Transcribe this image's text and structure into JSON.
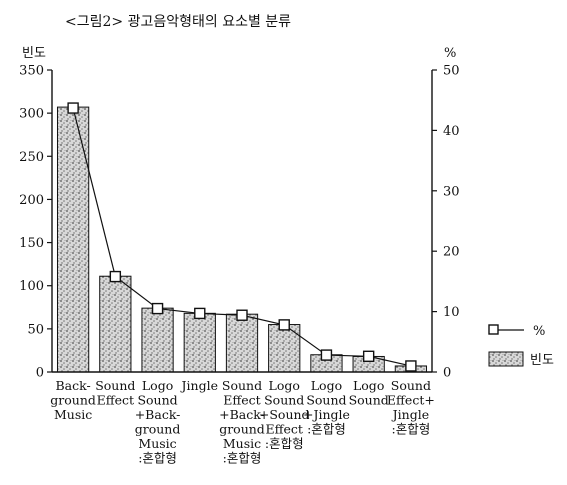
{
  "chart_data": {
    "type": "bar",
    "title": "<그림2> 광고음악형태의 요소별 분류",
    "ylabel_left": "빈도",
    "ylabel_right": "%",
    "ylim_left": [
      0,
      350
    ],
    "ylim_right": [
      0,
      50
    ],
    "yticks_left": [
      "0",
      "50",
      "100",
      "150",
      "200",
      "250",
      "300",
      "350"
    ],
    "yticks_right": [
      "0",
      "10",
      "20",
      "30",
      "40",
      "50"
    ],
    "categories": [
      [
        "Back-",
        "ground",
        "Music"
      ],
      [
        "Sound",
        "Effect"
      ],
      [
        "Logo",
        "Sound",
        "+Back-",
        "ground",
        "Music",
        ":혼합형"
      ],
      [
        "Jingle"
      ],
      [
        "Sound",
        "Effect",
        "+Back-",
        "ground",
        "Music",
        ":혼합형"
      ],
      [
        "Logo",
        "Sound",
        "+Sound",
        "Effect",
        ":혼합형"
      ],
      [
        "Logo",
        "Sound",
        "+Jingle",
        ":혼합형"
      ],
      [
        "Logo",
        "Sound"
      ],
      [
        "Sound",
        "Effect+",
        "Jingle",
        ":혼합형"
      ]
    ],
    "series": [
      {
        "name": "빈도",
        "kind": "bar",
        "axis": "left",
        "values": [
          307,
          111,
          74,
          68,
          67,
          55,
          20,
          18,
          7
        ]
      },
      {
        "name": "%",
        "kind": "line",
        "axis": "right",
        "values": [
          43.7,
          15.8,
          10.5,
          9.7,
          9.4,
          7.8,
          2.8,
          2.6,
          1.0
        ]
      }
    ],
    "legend": {
      "position": "right",
      "entries": [
        {
          "label": "%",
          "marker": "line-square"
        },
        {
          "label": "빈도",
          "marker": "stippled-box"
        }
      ]
    },
    "colors": {
      "ink": "#111111",
      "bar_fill": "#c9c9c9",
      "marker_fill": "#ffffff"
    },
    "grid": false
  }
}
